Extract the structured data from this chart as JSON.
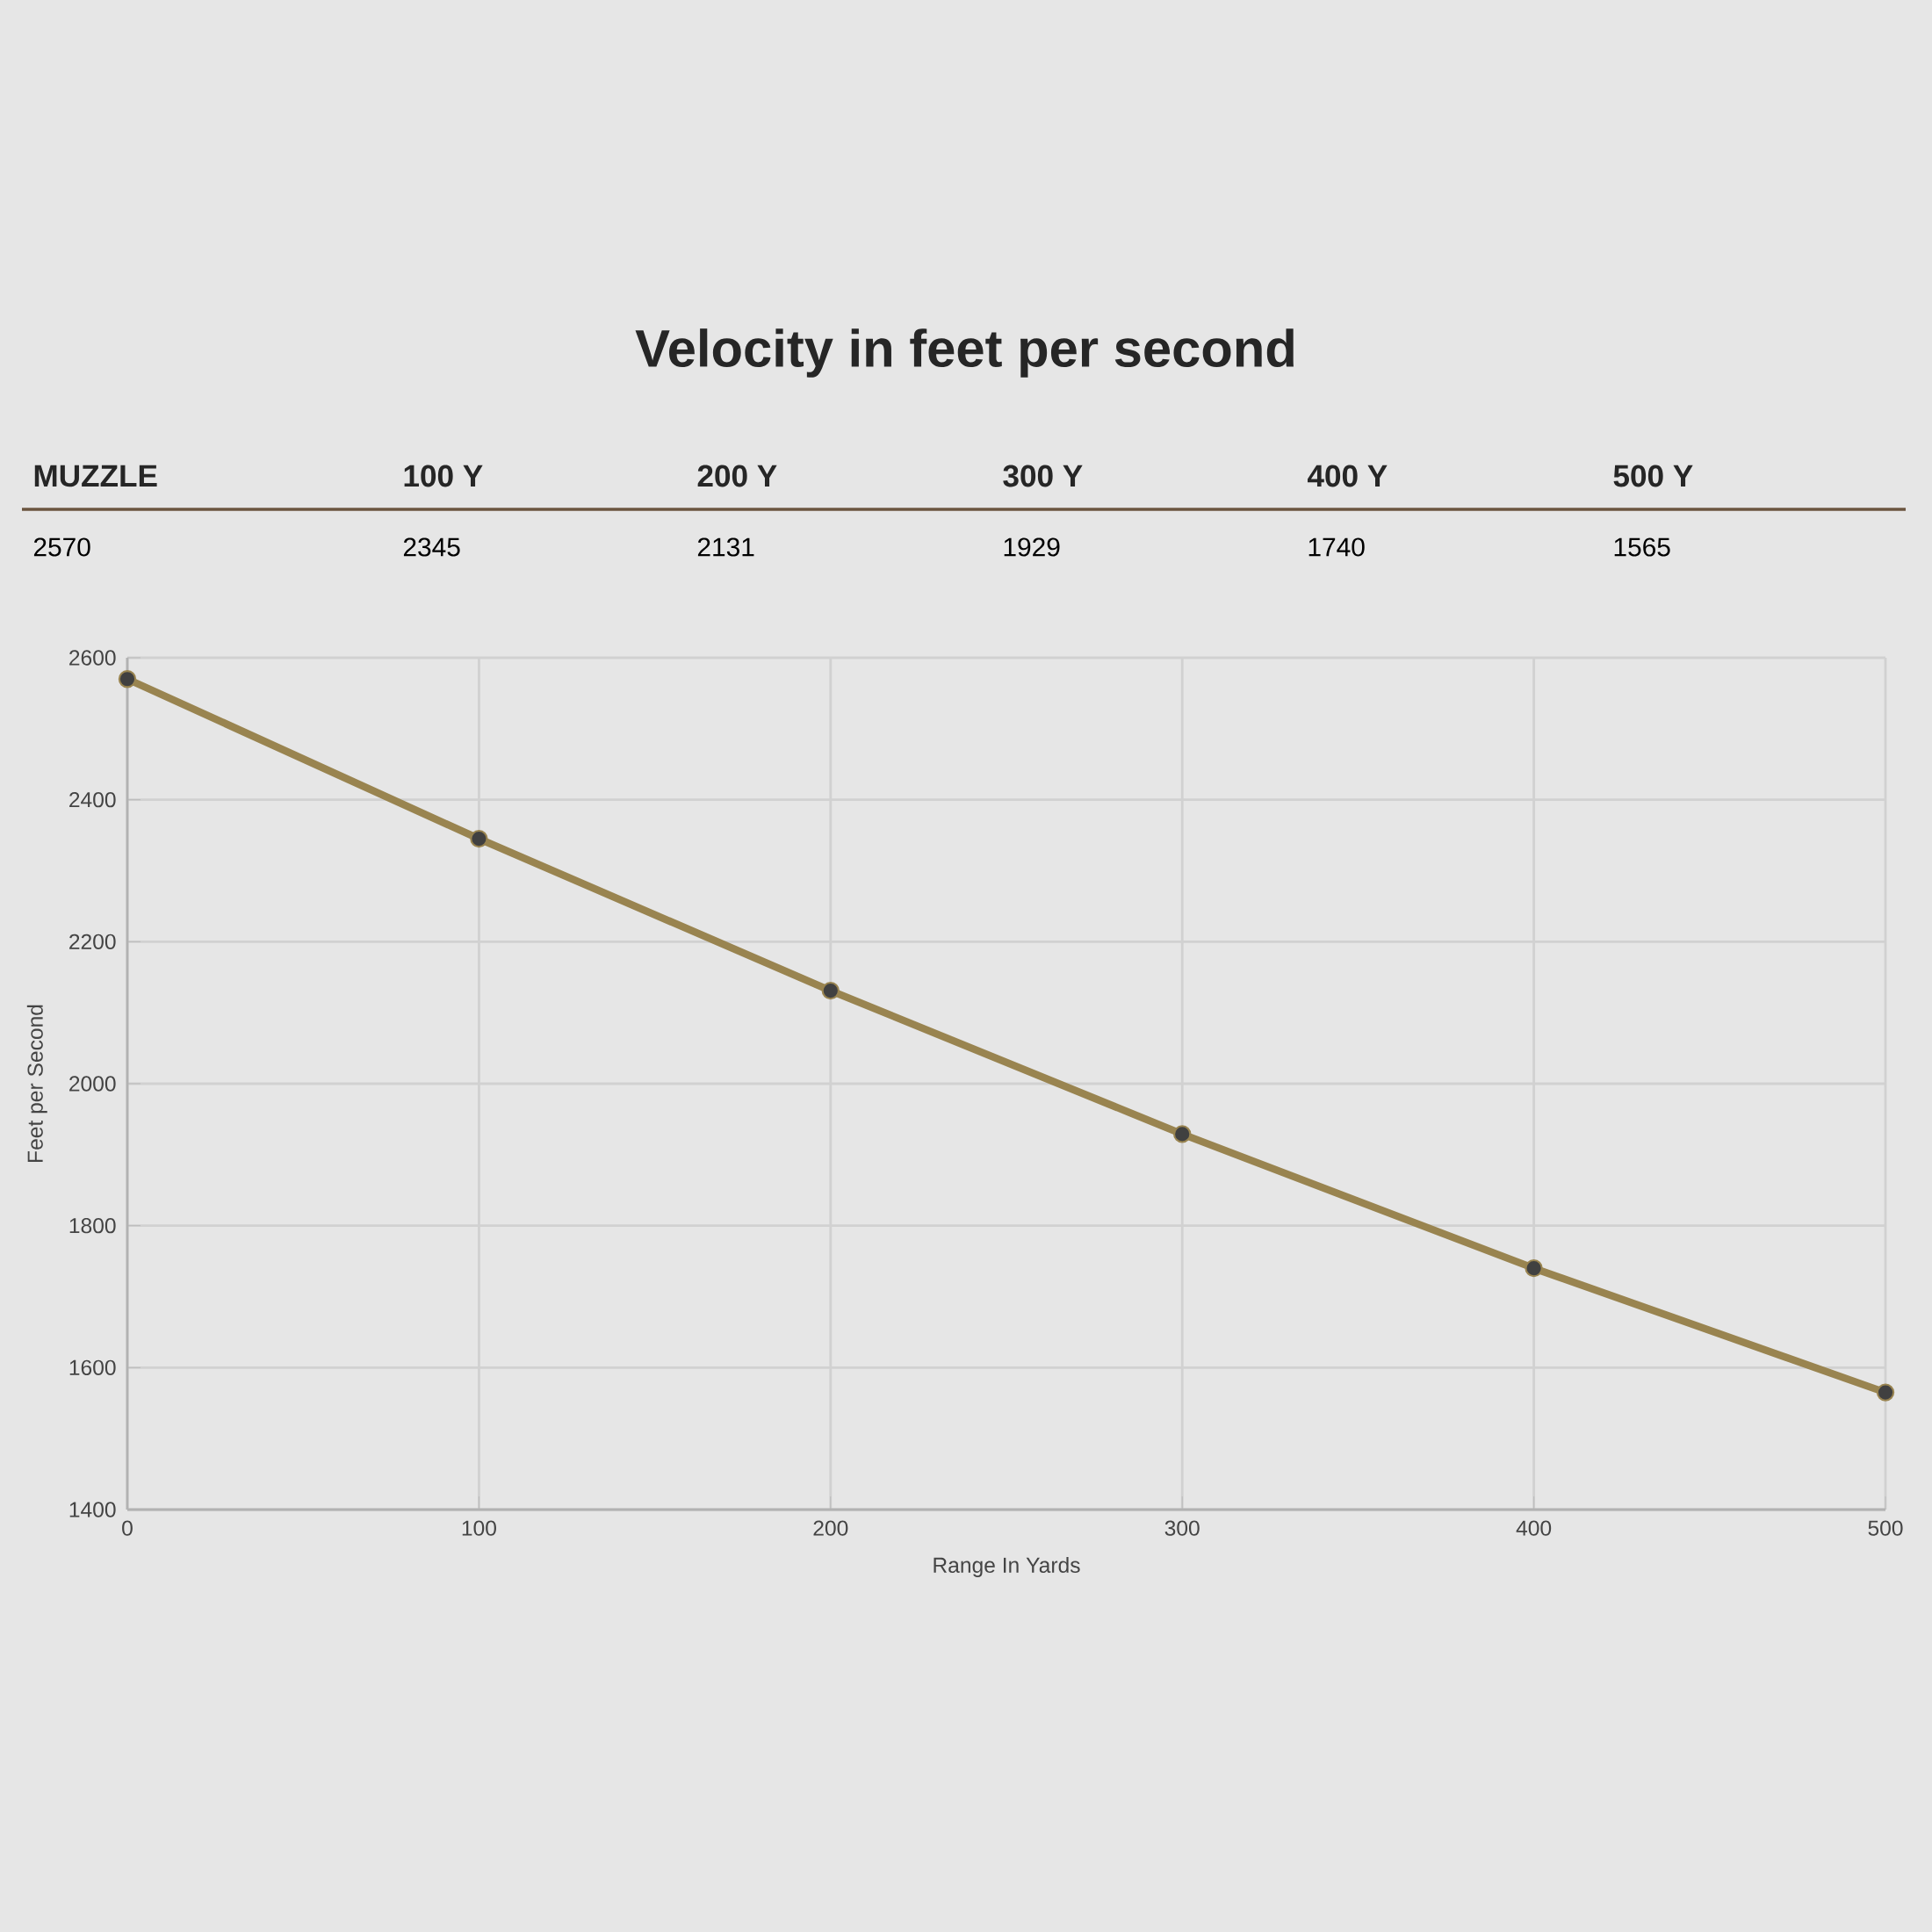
{
  "chart_data": {
    "type": "line",
    "title": "Velocity in feet per second",
    "xlabel": "Range In Yards",
    "ylabel": "Feet per Second",
    "annotations": [
      "MUZZLE",
      "100 Y",
      "200 Y",
      "300 Y",
      "400 Y",
      "500 Y",
      "2570",
      "2345",
      "2131",
      "1929",
      "1740",
      "1565"
    ],
    "x": [
      0,
      100,
      200,
      300,
      400,
      500
    ],
    "series": [
      {
        "color": "#998450",
        "values": [
          2570,
          2345,
          2131,
          1929,
          1740,
          1565
        ]
      }
    ],
    "xlim": [
      0,
      500
    ],
    "xticks": [
      0,
      100,
      200,
      300,
      400,
      500
    ],
    "ylim": [
      1400,
      2600
    ],
    "yticks": [
      1400,
      1600,
      1800,
      2000,
      2200,
      2400,
      2600
    ],
    "grid": true,
    "marker": "circle",
    "line_style": "solid"
  }
}
